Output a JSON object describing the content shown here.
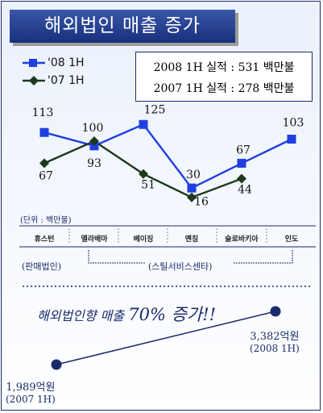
{
  "title": "해외법인 매출 증가",
  "summary": {
    "line_2008": "2008 1H 실적 : 531 백만불",
    "line_2007": "2007 1H 실적 : 278 백만불"
  },
  "unit_note": "(단위 : 백만불)",
  "groups": {
    "sales": "(판매법인)",
    "steel_service": "(스틸서비스센타)"
  },
  "growth": {
    "label": "해외법인향 매출",
    "percent": "70% 증가!!",
    "start": {
      "value": "1,989억원",
      "period": "(2007 1H)"
    },
    "end": {
      "value": "3,382억원",
      "period": "(2008 1H)"
    }
  },
  "colors": {
    "series_08": "#1f3fe0",
    "series_07": "#1d3a1d",
    "accent": "#1a2a6b"
  },
  "chart_data": {
    "type": "line",
    "categories": [
      "휴스턴",
      "앨라배마",
      "베이징",
      "옌칭",
      "슬로바키아",
      "인도"
    ],
    "series": [
      {
        "name": "'08 1H",
        "values": [
          113,
          93,
          125,
          30,
          67,
          103
        ],
        "color": "#1f3fe0",
        "marker": "square"
      },
      {
        "name": "'07 1H",
        "values": [
          67,
          100,
          51,
          16,
          44,
          null
        ],
        "color": "#1d3a1d",
        "marker": "diamond"
      }
    ],
    "ylim": [
      0,
      140
    ],
    "legend": "top-left",
    "grid": false,
    "unit": "백만불"
  }
}
